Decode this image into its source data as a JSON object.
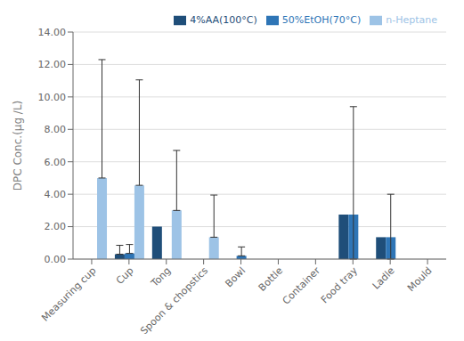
{
  "chart_data": {
    "type": "bar",
    "categories": [
      "Measuring cup",
      "Cup",
      "Tong",
      "Spoon & chopstics",
      "Bowl",
      "Bottle",
      "Container",
      "Food tray",
      "Ladle",
      "Mould"
    ],
    "series": [
      {
        "name": "4%AA(100°C)",
        "color": "#1f4e79",
        "values": [
          0.0,
          0.3,
          2.0,
          0.0,
          0.0,
          0.0,
          0.0,
          2.75,
          1.35,
          0.0
        ],
        "errors_upper": [
          0.0,
          0.55,
          0.0,
          0.0,
          0.0,
          0.0,
          0.0,
          0.0,
          0.0,
          0.0
        ],
        "errors_lower": [
          0.0,
          0.0,
          0.0,
          0.0,
          0.0,
          0.0,
          0.0,
          0.0,
          0.0,
          0.0
        ]
      },
      {
        "name": "50%EtOH(70°C)",
        "color": "#2e75b6",
        "values": [
          0.0,
          0.35,
          0.0,
          0.0,
          0.2,
          0.0,
          0.0,
          2.75,
          1.35,
          0.0
        ],
        "errors_upper": [
          0.0,
          0.55,
          0.0,
          0.0,
          0.55,
          0.0,
          0.0,
          6.65,
          2.65,
          0.0
        ],
        "errors_lower": [
          0.0,
          0.0,
          0.0,
          0.0,
          0.0,
          0.0,
          0.0,
          2.75,
          1.35,
          0.0
        ]
      },
      {
        "name": "n-Heptane",
        "color": "#9dc3e6",
        "values": [
          5.0,
          4.55,
          3.0,
          1.35,
          0.0,
          0.0,
          0.0,
          0.0,
          0.0,
          0.0
        ],
        "errors_upper": [
          7.3,
          6.5,
          3.7,
          2.6,
          0.0,
          0.0,
          0.0,
          0.0,
          0.0,
          0.0
        ],
        "errors_lower": [
          0.0,
          0.0,
          0.0,
          0.0,
          0.0,
          0.0,
          0.0,
          0.0,
          0.0,
          0.0
        ]
      }
    ],
    "ylabel": "DPC Conc.(μg /L)",
    "ylim": [
      0,
      14.0
    ],
    "yticks": [
      {
        "value": 0.0,
        "label": "0.00"
      },
      {
        "value": 2.0,
        "label": "2.00"
      },
      {
        "value": 4.0,
        "label": "4.00"
      },
      {
        "value": 6.0,
        "label": "6.00"
      },
      {
        "value": 8.0,
        "label": "8.00"
      },
      {
        "value": 10.0,
        "label": "10.00"
      },
      {
        "value": 12.0,
        "label": "12.00"
      },
      {
        "value": 14.0,
        "label": "14.00"
      }
    ],
    "grid": true,
    "legend": "upper right"
  }
}
